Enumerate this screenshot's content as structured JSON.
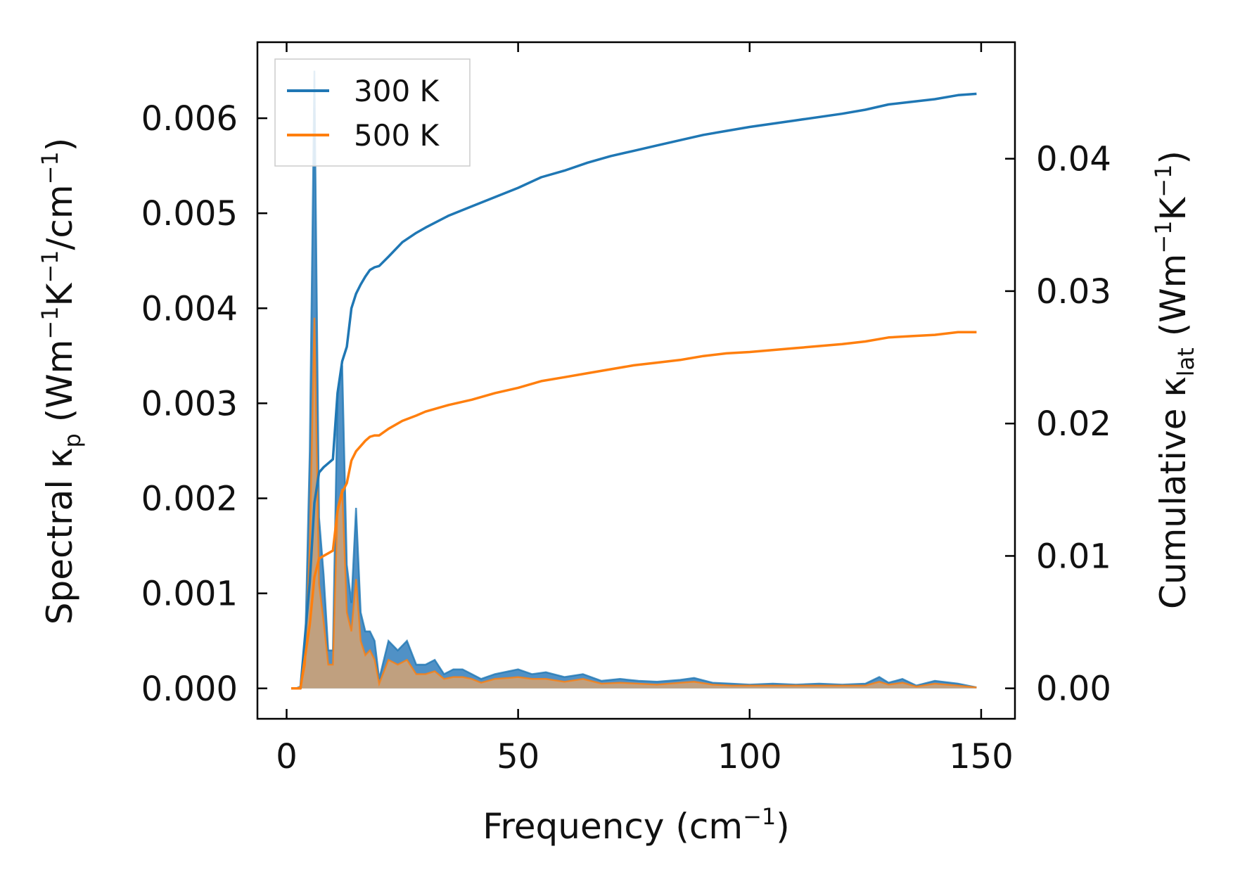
{
  "chart_data": {
    "type": "line",
    "xlabel": {
      "text": "Frequency (cm",
      "sup": "−1",
      "tail": ")"
    },
    "ylabel_left": {
      "parts": [
        "Spectral κ",
        "p",
        " (Wm",
        "−1",
        "K",
        "−1",
        "/cm",
        "−1",
        ")"
      ]
    },
    "ylabel_right": {
      "parts": [
        "Cumulative κ",
        "lat",
        " (Wm",
        "−1",
        "K",
        "−1",
        ")"
      ]
    },
    "xlim": [
      -6.3,
      157.3
    ],
    "ylim_left": [
      -0.00032,
      0.0068
    ],
    "ylim_right": [
      -0.0023,
      0.0488
    ],
    "x_ticks": [
      0,
      50,
      100,
      150
    ],
    "x_tick_labels": [
      "0",
      "50",
      "100",
      "150"
    ],
    "y_left_ticks": [
      0,
      0.001,
      0.002,
      0.003,
      0.004,
      0.005,
      0.006
    ],
    "y_left_tick_labels": [
      "0.000",
      "0.001",
      "0.002",
      "0.003",
      "0.004",
      "0.005",
      "0.006"
    ],
    "y_right_ticks": [
      0,
      0.01,
      0.02,
      0.03,
      0.04
    ],
    "y_right_tick_labels": [
      "0.00",
      "0.01",
      "0.02",
      "0.03",
      "0.04"
    ],
    "legend": {
      "position": "top-left",
      "entries": [
        "300 K",
        "500 K"
      ]
    },
    "colors": {
      "300 K": "#1f77b4",
      "500 K": "#ff7f0e",
      "fill_300": "#3d85c0",
      "fill_500": "#d4a272"
    },
    "spectral": [
      {
        "name": "300 K",
        "axis": "left",
        "x": [
          1,
          2,
          3,
          4,
          5,
          6,
          7,
          8,
          9,
          10,
          11,
          12,
          13,
          14,
          15,
          16,
          17,
          18,
          19,
          20,
          22,
          24,
          26,
          28,
          30,
          32,
          34,
          36,
          38,
          40,
          42,
          45,
          48,
          50,
          53,
          56,
          60,
          64,
          68,
          72,
          76,
          80,
          85,
          88,
          92,
          96,
          100,
          105,
          110,
          115,
          120,
          125,
          128,
          130,
          133,
          136,
          140,
          145,
          149
        ],
        "values": [
          0,
          0,
          2e-05,
          0.0004,
          0.0025,
          0.0065,
          0.0018,
          0.0012,
          0.0004,
          0.0004,
          0.0031,
          0.0034,
          0.0013,
          0.0009,
          0.0019,
          0.0008,
          0.0006,
          0.0006,
          0.0005,
          0.0001,
          0.0005,
          0.0004,
          0.0005,
          0.00025,
          0.00025,
          0.0003,
          0.00015,
          0.0002,
          0.0002,
          0.00015,
          0.0001,
          0.00015,
          0.00018,
          0.0002,
          0.00015,
          0.00017,
          0.00012,
          0.00015,
          8e-05,
          0.0001,
          8e-05,
          7e-05,
          9e-05,
          0.00011,
          6e-05,
          5e-05,
          4e-05,
          5e-05,
          4e-05,
          5e-05,
          4e-05,
          5e-05,
          0.00012,
          6e-05,
          0.0001,
          3e-05,
          8e-05,
          5e-05,
          1e-05
        ]
      },
      {
        "name": "500 K",
        "axis": "left",
        "x": [
          1,
          2,
          3,
          4,
          5,
          6,
          7,
          8,
          9,
          10,
          11,
          12,
          13,
          14,
          15,
          16,
          17,
          18,
          19,
          20,
          22,
          24,
          26,
          28,
          30,
          32,
          34,
          36,
          38,
          40,
          42,
          45,
          48,
          50,
          53,
          56,
          60,
          64,
          68,
          72,
          76,
          80,
          85,
          88,
          92,
          96,
          100,
          105,
          110,
          115,
          120,
          125,
          128,
          130,
          133,
          136,
          140,
          145,
          149
        ],
        "values": [
          0,
          0,
          1e-05,
          0.00025,
          0.0015,
          0.0039,
          0.0011,
          0.0007,
          0.00025,
          0.00025,
          0.0019,
          0.0021,
          0.0008,
          0.0006,
          0.00115,
          0.0005,
          0.00035,
          0.0004,
          0.0003,
          5e-05,
          0.0003,
          0.00025,
          0.0003,
          0.00015,
          0.00015,
          0.00018,
          0.0001,
          0.00012,
          0.00012,
          0.0001,
          6e-05,
          0.0001,
          0.00011,
          0.00012,
          0.0001,
          0.0001,
          7e-05,
          0.0001,
          5e-05,
          6e-05,
          5e-05,
          4e-05,
          6e-05,
          7e-05,
          4e-05,
          3e-05,
          3e-05,
          3e-05,
          3e-05,
          3e-05,
          3e-05,
          3e-05,
          7e-05,
          4e-05,
          6e-05,
          2e-05,
          5e-05,
          3e-05,
          1e-05
        ]
      }
    ],
    "cumulative": [
      {
        "name": "300 K",
        "axis": "right",
        "x": [
          1,
          3,
          4,
          5,
          6,
          7,
          8,
          9,
          10,
          11,
          12,
          13,
          14,
          15,
          16,
          17,
          18,
          19,
          20,
          22,
          25,
          28,
          30,
          35,
          40,
          45,
          50,
          55,
          60,
          65,
          70,
          75,
          80,
          85,
          90,
          95,
          100,
          110,
          120,
          125,
          130,
          135,
          140,
          145,
          149
        ],
        "values": [
          0,
          0,
          0.004,
          0.008,
          0.014,
          0.0163,
          0.0167,
          0.017,
          0.0173,
          0.0223,
          0.0247,
          0.0258,
          0.0287,
          0.0298,
          0.0305,
          0.0311,
          0.0316,
          0.0318,
          0.0319,
          0.0326,
          0.0337,
          0.0344,
          0.0348,
          0.0357,
          0.0364,
          0.0371,
          0.0378,
          0.0386,
          0.0391,
          0.0397,
          0.0402,
          0.0406,
          0.041,
          0.0414,
          0.0418,
          0.0421,
          0.0424,
          0.0429,
          0.0434,
          0.0437,
          0.0441,
          0.0443,
          0.0445,
          0.0448,
          0.0449
        ]
      },
      {
        "name": "500 K",
        "axis": "right",
        "x": [
          1,
          3,
          4,
          5,
          6,
          7,
          8,
          9,
          10,
          11,
          12,
          13,
          14,
          15,
          16,
          17,
          18,
          19,
          20,
          22,
          25,
          28,
          30,
          35,
          40,
          45,
          50,
          55,
          60,
          65,
          70,
          75,
          80,
          85,
          90,
          95,
          100,
          110,
          120,
          125,
          130,
          135,
          140,
          145,
          149
        ],
        "values": [
          0,
          0,
          0.0024,
          0.0048,
          0.0084,
          0.0098,
          0.01,
          0.0102,
          0.0104,
          0.0134,
          0.0148,
          0.0155,
          0.0172,
          0.0179,
          0.0183,
          0.0187,
          0.019,
          0.0191,
          0.0191,
          0.0196,
          0.0202,
          0.0206,
          0.0209,
          0.0214,
          0.0218,
          0.0223,
          0.0227,
          0.0232,
          0.0235,
          0.0238,
          0.0241,
          0.0244,
          0.0246,
          0.0248,
          0.0251,
          0.0253,
          0.0254,
          0.0257,
          0.026,
          0.0262,
          0.0265,
          0.0266,
          0.0267,
          0.0269,
          0.0269
        ]
      }
    ]
  }
}
